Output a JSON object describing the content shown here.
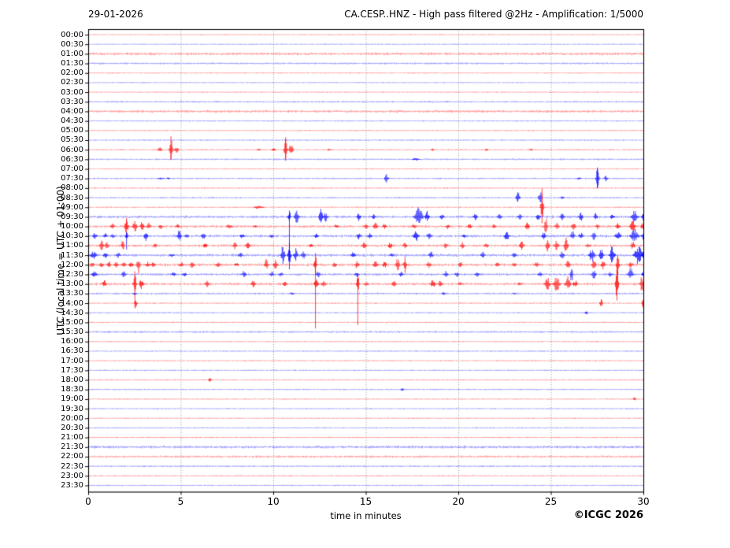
{
  "header": {
    "date": "29-01-2026",
    "title": "CA.CESP..HNZ - High pass filtered @2Hz - Amplification: 1/5000"
  },
  "axes": {
    "y_label": "UTC (local time = UTC + 01:00)",
    "x_label": "time in minutes"
  },
  "footer": {
    "copyright": "©ICGC 2026"
  },
  "chart_data": {
    "type": "line",
    "subtype": "helicorder-seismogram",
    "station": "CA.CESP..HNZ",
    "processing": "High pass filtered @2Hz",
    "amplification": "1/5000",
    "date": "29-01-2026",
    "x_unit": "minutes",
    "x_range": [
      0,
      30
    ],
    "x_ticks": [
      0,
      5,
      10,
      15,
      20,
      25,
      30
    ],
    "minutes_per_row": 30,
    "grid": "vertical-dotted-every-5-min",
    "legend_position": "none",
    "colors": {
      "r": "#ff0000",
      "b": "#0000ff",
      "grid": "#777777",
      "frame": "#000000",
      "text": "#000000"
    },
    "event_format": "[minute, amplitude_px, half_width_min(optional), down_tail_px(optional)]",
    "rows": [
      {
        "t": "00:00",
        "c": "r",
        "n": 0.45,
        "e": []
      },
      {
        "t": "00:30",
        "c": "b",
        "n": 0.45,
        "e": []
      },
      {
        "t": "01:00",
        "c": "r",
        "n": 1.3,
        "e": []
      },
      {
        "t": "01:30",
        "c": "b",
        "n": 0.8,
        "e": []
      },
      {
        "t": "02:00",
        "c": "r",
        "n": 0.5,
        "e": []
      },
      {
        "t": "02:30",
        "c": "b",
        "n": 0.45,
        "e": []
      },
      {
        "t": "03:00",
        "c": "r",
        "n": 0.5,
        "e": []
      },
      {
        "t": "03:30",
        "c": "b",
        "n": 0.7,
        "e": []
      },
      {
        "t": "04:00",
        "c": "r",
        "n": 1.2,
        "e": []
      },
      {
        "t": "04:30",
        "c": "b",
        "n": 0.5,
        "e": []
      },
      {
        "t": "05:00",
        "c": "r",
        "n": 0.5,
        "e": []
      },
      {
        "t": "05:30",
        "c": "b",
        "n": 0.6,
        "e": []
      },
      {
        "t": "06:00",
        "c": "r",
        "n": 0.6,
        "e": [
          [
            3.85,
            4
          ],
          [
            4.45,
            17,
            0.12,
            13
          ],
          [
            4.75,
            5
          ],
          [
            9.2,
            1.5
          ],
          [
            10.0,
            2
          ],
          [
            10.65,
            16,
            0.12,
            12
          ],
          [
            10.95,
            9
          ],
          [
            13.0,
            1.5
          ],
          [
            18.6,
            1.5
          ],
          [
            21.5,
            1.5
          ],
          [
            23.9,
            1.5
          ]
        ]
      },
      {
        "t": "06:30",
        "c": "b",
        "n": 0.7,
        "e": [
          [
            17.7,
            2,
            0.3
          ]
        ]
      },
      {
        "t": "07:00",
        "c": "r",
        "n": 0.5,
        "e": []
      },
      {
        "t": "07:30",
        "c": "b",
        "n": 0.6,
        "e": [
          [
            3.9,
            1.5,
            0.3
          ],
          [
            4.3,
            1.5
          ],
          [
            16.1,
            7,
            0.15
          ],
          [
            26.5,
            2
          ],
          [
            27.5,
            14,
            0.12,
            12
          ],
          [
            27.95,
            4
          ]
        ]
      },
      {
        "t": "08:00",
        "c": "r",
        "n": 0.6,
        "e": []
      },
      {
        "t": "08:30",
        "c": "b",
        "n": 0.6,
        "e": [
          [
            23.2,
            8,
            0.15
          ],
          [
            24.4,
            11,
            0.12
          ],
          [
            25.6,
            2
          ]
        ]
      },
      {
        "t": "09:00",
        "c": "r",
        "n": 0.6,
        "e": [
          [
            9.2,
            3,
            0.35
          ],
          [
            24.5,
            24,
            0.1,
            8
          ]
        ]
      },
      {
        "t": "09:30",
        "c": "b",
        "n": 1.2,
        "e": [
          [
            10.85,
            8,
            0.12,
            45
          ],
          [
            11.25,
            10
          ],
          [
            12.55,
            11,
            0.15
          ],
          [
            12.8,
            7
          ],
          [
            14.6,
            6
          ],
          [
            15.4,
            4
          ],
          [
            17.85,
            13,
            0.3
          ],
          [
            18.3,
            8
          ],
          [
            19.1,
            4
          ],
          [
            20.9,
            5
          ],
          [
            22.2,
            4
          ],
          [
            23.3,
            4
          ],
          [
            24.3,
            6
          ],
          [
            25.6,
            5
          ],
          [
            26.6,
            7
          ],
          [
            27.4,
            5
          ],
          [
            28.3,
            4
          ],
          [
            29.5,
            8,
            0.25
          ],
          [
            30,
            6
          ]
        ]
      },
      {
        "t": "10:00",
        "c": "r",
        "n": 1.3,
        "e": [
          [
            1.3,
            4
          ],
          [
            2.05,
            11,
            0.15,
            14
          ],
          [
            2.5,
            9
          ],
          [
            2.9,
            7
          ],
          [
            3.25,
            5
          ],
          [
            3.9,
            4
          ],
          [
            4.8,
            3
          ],
          [
            7.6,
            4,
            0.2
          ],
          [
            9.0,
            2
          ],
          [
            13.4,
            3
          ],
          [
            15.0,
            4
          ],
          [
            15.5,
            5
          ],
          [
            16.0,
            4
          ],
          [
            17.6,
            4
          ],
          [
            19.4,
            4
          ],
          [
            20.6,
            4
          ],
          [
            21.9,
            3
          ],
          [
            23.7,
            6
          ],
          [
            24.7,
            16,
            0.1
          ],
          [
            25.3,
            5
          ],
          [
            26.2,
            6
          ],
          [
            27.5,
            4
          ],
          [
            28.6,
            6
          ],
          [
            29.4,
            10,
            0.2
          ],
          [
            29.95,
            7
          ]
        ]
      },
      {
        "t": "10:30",
        "c": "b",
        "n": 1.2,
        "e": [
          [
            0.35,
            5
          ],
          [
            0.9,
            4
          ],
          [
            1.3,
            4
          ],
          [
            2.05,
            5,
            0.12,
            17
          ],
          [
            3.1,
            8,
            0.15
          ],
          [
            4.9,
            9,
            0.15
          ],
          [
            5.3,
            5
          ],
          [
            6.2,
            5
          ],
          [
            8.3,
            4
          ],
          [
            9.9,
            3
          ],
          [
            12.3,
            4
          ],
          [
            14.6,
            5
          ],
          [
            15.2,
            4
          ],
          [
            17.7,
            8,
            0.2
          ],
          [
            18.4,
            5
          ],
          [
            20.3,
            3
          ],
          [
            22.6,
            7,
            0.2
          ],
          [
            24.6,
            6
          ],
          [
            26.15,
            8
          ],
          [
            26.6,
            6
          ],
          [
            27.3,
            6
          ],
          [
            28.6,
            8,
            0.2
          ],
          [
            29.5,
            10,
            0.3
          ],
          [
            30,
            8
          ]
        ]
      },
      {
        "t": "11:00",
        "c": "r",
        "n": 1.2,
        "e": [
          [
            0.7,
            7,
            0.15
          ],
          [
            1.0,
            5
          ],
          [
            1.85,
            10,
            0.12
          ],
          [
            3.6,
            3
          ],
          [
            6.3,
            4
          ],
          [
            7.9,
            6,
            0.15
          ],
          [
            8.6,
            5
          ],
          [
            12.0,
            3
          ],
          [
            14.9,
            5
          ],
          [
            16.3,
            5
          ],
          [
            17.1,
            4
          ],
          [
            19.3,
            4
          ],
          [
            20.2,
            5
          ],
          [
            21.5,
            4
          ],
          [
            23.4,
            6
          ],
          [
            24.8,
            9,
            0.15
          ],
          [
            25.3,
            8
          ],
          [
            25.8,
            11,
            0.15
          ],
          [
            27.0,
            4
          ],
          [
            29.4,
            6
          ]
        ]
      },
      {
        "t": "11:30",
        "c": "b",
        "n": 1.3,
        "e": [
          [
            0.25,
            6,
            0.25
          ],
          [
            0.9,
            5
          ],
          [
            1.6,
            4
          ],
          [
            4.5,
            3
          ],
          [
            8.2,
            5
          ],
          [
            10.5,
            13,
            0.15
          ],
          [
            10.85,
            16,
            0.12,
            18
          ],
          [
            11.2,
            9
          ],
          [
            11.6,
            6
          ],
          [
            14.3,
            5
          ],
          [
            16.4,
            4
          ],
          [
            18.5,
            6
          ],
          [
            21.3,
            5
          ],
          [
            23.0,
            4
          ],
          [
            25.6,
            6
          ],
          [
            27.2,
            11,
            0.2
          ],
          [
            27.7,
            9
          ],
          [
            28.3,
            13,
            0.2
          ],
          [
            29.7,
            15,
            0.3
          ],
          [
            30,
            10
          ]
        ]
      },
      {
        "t": "12:00",
        "c": "r",
        "n": 1.4,
        "e": [
          [
            0.2,
            4
          ],
          [
            0.7,
            4
          ],
          [
            1.1,
            5
          ],
          [
            1.5,
            4
          ],
          [
            1.9,
            4
          ],
          [
            2.3,
            5
          ],
          [
            2.7,
            12,
            0.12
          ],
          [
            3.2,
            4
          ],
          [
            3.5,
            4
          ],
          [
            5.0,
            4
          ],
          [
            5.6,
            5
          ],
          [
            7.0,
            4
          ],
          [
            8.0,
            3
          ],
          [
            9.6,
            9,
            0.15
          ],
          [
            10.1,
            8
          ],
          [
            12.26,
            15,
            0.1,
            81
          ],
          [
            13.3,
            4
          ],
          [
            14.5,
            6
          ],
          [
            15.5,
            6
          ],
          [
            16.0,
            5
          ],
          [
            16.7,
            11,
            0.12
          ],
          [
            17.1,
            12,
            0.12
          ],
          [
            18.4,
            5
          ],
          [
            20.1,
            4
          ],
          [
            22.1,
            4
          ],
          [
            23.0,
            4
          ],
          [
            24.2,
            4
          ],
          [
            25.9,
            6
          ],
          [
            27.3,
            9,
            0.15
          ],
          [
            27.8,
            7
          ],
          [
            28.6,
            16,
            0.1
          ],
          [
            29.3,
            5
          ]
        ]
      },
      {
        "t": "12:30",
        "c": "b",
        "n": 1.1,
        "e": [
          [
            0.3,
            5,
            0.2
          ],
          [
            1.9,
            5
          ],
          [
            4.6,
            4
          ],
          [
            5.2,
            3
          ],
          [
            8.4,
            6,
            0.15
          ],
          [
            9.9,
            4
          ],
          [
            10.4,
            4
          ],
          [
            12.4,
            6
          ],
          [
            14.5,
            4
          ],
          [
            16.9,
            4
          ],
          [
            19.3,
            5
          ],
          [
            19.9,
            4
          ],
          [
            21.0,
            4
          ],
          [
            24.4,
            4
          ],
          [
            26.1,
            14,
            0.1
          ],
          [
            27.3,
            7
          ],
          [
            28.2,
            4
          ],
          [
            29.3,
            9,
            0.2
          ],
          [
            30,
            5
          ]
        ]
      },
      {
        "t": "13:00",
        "c": "r",
        "n": 1.2,
        "e": [
          [
            0.85,
            6,
            0.15
          ],
          [
            2.5,
            16,
            0.12,
            31
          ],
          [
            2.85,
            8
          ],
          [
            6.4,
            5
          ],
          [
            8.9,
            5
          ],
          [
            10.6,
            4
          ],
          [
            12.3,
            8,
            0.15
          ],
          [
            12.7,
            6
          ],
          [
            14.55,
            12,
            0.1,
            52
          ],
          [
            15.0,
            4
          ],
          [
            16.5,
            5
          ],
          [
            18.6,
            7,
            0.2
          ],
          [
            19.0,
            5
          ],
          [
            20.1,
            4
          ],
          [
            23.3,
            3
          ],
          [
            24.8,
            9,
            0.2
          ],
          [
            25.3,
            11,
            0.25
          ],
          [
            25.9,
            10,
            0.2
          ],
          [
            26.3,
            7
          ],
          [
            28.55,
            23,
            0.12,
            21
          ],
          [
            29.9,
            12,
            0.15
          ]
        ]
      },
      {
        "t": "13:30",
        "c": "b",
        "n": 0.8,
        "e": [
          [
            2.5,
            2
          ],
          [
            11.0,
            2
          ],
          [
            19.2,
            2
          ],
          [
            23.0,
            1.5
          ]
        ]
      },
      {
        "t": "14:00",
        "c": "r",
        "n": 0.6,
        "e": [
          [
            2.55,
            6,
            0.1
          ],
          [
            27.7,
            7,
            0.08
          ],
          [
            29.97,
            7,
            0.08
          ]
        ]
      },
      {
        "t": "14:30",
        "c": "b",
        "n": 0.55,
        "e": [
          [
            26.9,
            3,
            0.12
          ]
        ]
      },
      {
        "t": "15:00",
        "c": "r",
        "n": 0.55,
        "e": []
      },
      {
        "t": "15:30",
        "c": "b",
        "n": 0.8,
        "e": []
      },
      {
        "t": "16:00",
        "c": "r",
        "n": 0.5,
        "e": []
      },
      {
        "t": "16:30",
        "c": "b",
        "n": 0.5,
        "e": []
      },
      {
        "t": "17:00",
        "c": "r",
        "n": 0.55,
        "e": []
      },
      {
        "t": "17:30",
        "c": "b",
        "n": 0.5,
        "e": []
      },
      {
        "t": "18:00",
        "c": "r",
        "n": 0.55,
        "e": [
          [
            6.55,
            3,
            0.12
          ]
        ]
      },
      {
        "t": "18:30",
        "c": "b",
        "n": 0.55,
        "e": [
          [
            16.95,
            3,
            0.12
          ]
        ]
      },
      {
        "t": "19:00",
        "c": "r",
        "n": 0.55,
        "e": [
          [
            29.5,
            2.5,
            0.12
          ]
        ]
      },
      {
        "t": "19:30",
        "c": "b",
        "n": 0.5,
        "e": []
      },
      {
        "t": "20:00",
        "c": "r",
        "n": 0.5,
        "e": []
      },
      {
        "t": "20:30",
        "c": "b",
        "n": 0.5,
        "e": []
      },
      {
        "t": "21:00",
        "c": "r",
        "n": 0.6,
        "e": []
      },
      {
        "t": "21:30",
        "c": "b",
        "n": 1.3,
        "e": []
      },
      {
        "t": "22:00",
        "c": "r",
        "n": 1.0,
        "e": []
      },
      {
        "t": "22:30",
        "c": "b",
        "n": 0.7,
        "e": []
      },
      {
        "t": "23:00",
        "c": "r",
        "n": 0.55,
        "e": []
      },
      {
        "t": "23:30",
        "c": "b",
        "n": 0.5,
        "e": []
      }
    ]
  }
}
